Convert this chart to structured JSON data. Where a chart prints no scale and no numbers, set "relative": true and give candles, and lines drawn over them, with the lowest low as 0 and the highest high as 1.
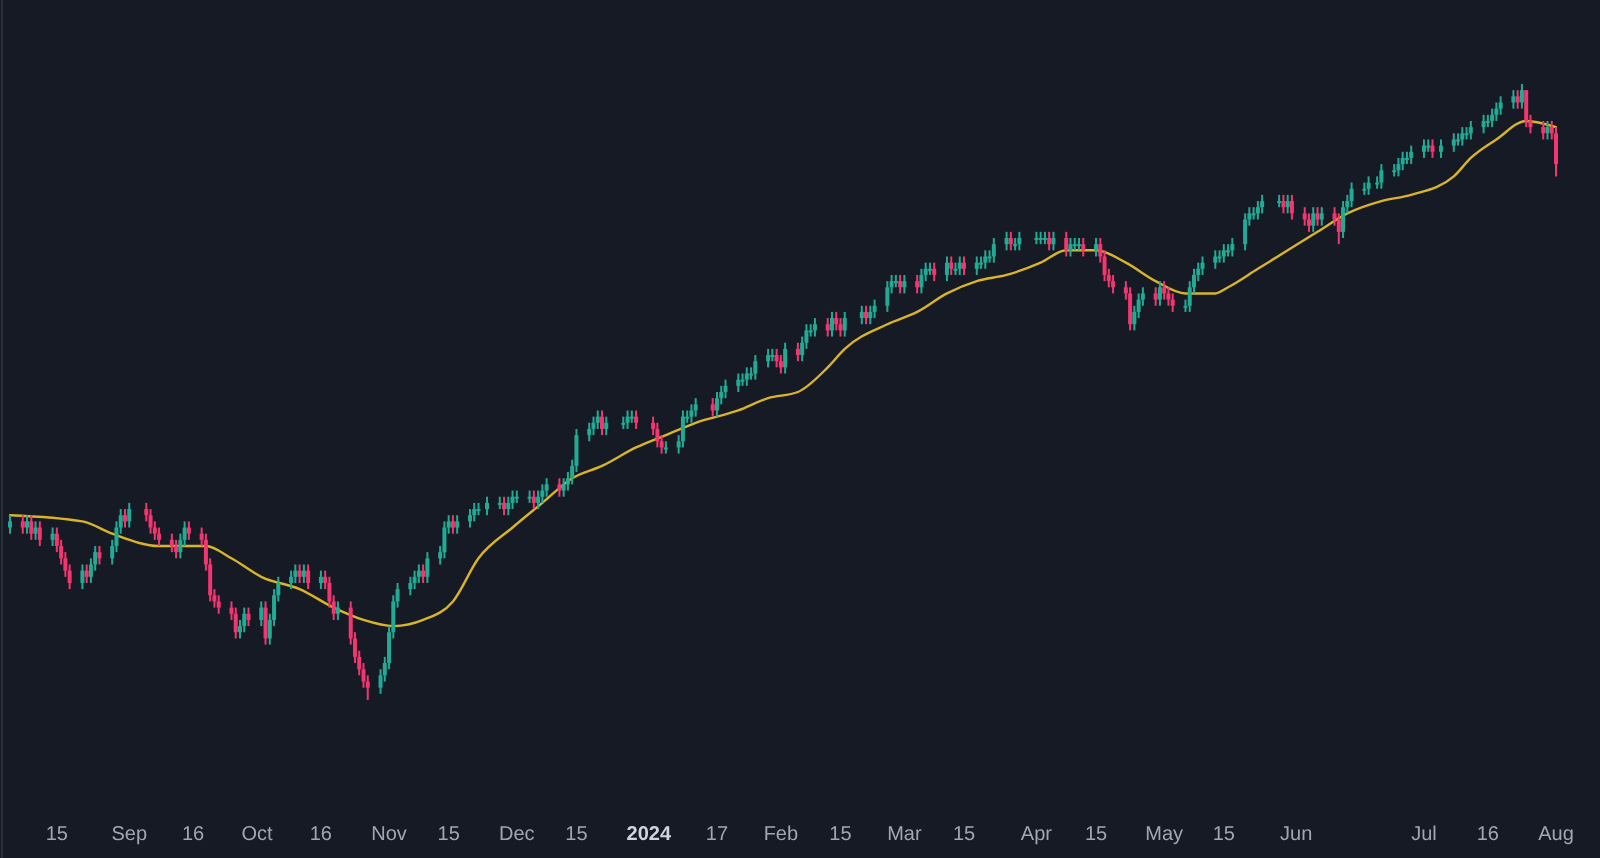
{
  "chart_data": {
    "type": "candlestick",
    "relative": true,
    "xlim": [
      "2023-08-04",
      "2024-08-01"
    ],
    "x": [
      "2023-08-04",
      "2023-08-07",
      "2023-08-08",
      "2023-08-09",
      "2023-08-10",
      "2023-08-11",
      "2023-08-14",
      "2023-08-15",
      "2023-08-16",
      "2023-08-17",
      "2023-08-18",
      "2023-08-21",
      "2023-08-22",
      "2023-08-23",
      "2023-08-24",
      "2023-08-25",
      "2023-08-28",
      "2023-08-29",
      "2023-08-30",
      "2023-08-31",
      "2023-09-01",
      "2023-09-05",
      "2023-09-06",
      "2023-09-07",
      "2023-09-08",
      "2023-09-11",
      "2023-09-12",
      "2023-09-13",
      "2023-09-14",
      "2023-09-15",
      "2023-09-18",
      "2023-09-19",
      "2023-09-20",
      "2023-09-21",
      "2023-09-22",
      "2023-09-25",
      "2023-09-26",
      "2023-09-27",
      "2023-09-28",
      "2023-09-29",
      "2023-10-02",
      "2023-10-03",
      "2023-10-04",
      "2023-10-05",
      "2023-10-06",
      "2023-10-09",
      "2023-10-10",
      "2023-10-11",
      "2023-10-12",
      "2023-10-13",
      "2023-10-16",
      "2023-10-17",
      "2023-10-18",
      "2023-10-19",
      "2023-10-20",
      "2023-10-23",
      "2023-10-24",
      "2023-10-25",
      "2023-10-26",
      "2023-10-27",
      "2023-10-30",
      "2023-10-31",
      "2023-11-01",
      "2023-11-02",
      "2023-11-03",
      "2023-11-06",
      "2023-11-07",
      "2023-11-08",
      "2023-11-09",
      "2023-11-10",
      "2023-11-13",
      "2023-11-14",
      "2023-11-15",
      "2023-11-16",
      "2023-11-17",
      "2023-11-20",
      "2023-11-21",
      "2023-11-22",
      "2023-11-24",
      "2023-11-27",
      "2023-11-28",
      "2023-11-29",
      "2023-11-30",
      "2023-12-01",
      "2023-12-04",
      "2023-12-05",
      "2023-12-06",
      "2023-12-07",
      "2023-12-08",
      "2023-12-11",
      "2023-12-12",
      "2023-12-13",
      "2023-12-14",
      "2023-12-15",
      "2023-12-18",
      "2023-12-19",
      "2023-12-20",
      "2023-12-21",
      "2023-12-22",
      "2023-12-26",
      "2023-12-27",
      "2023-12-28",
      "2023-12-29",
      "2024-01-02",
      "2024-01-03",
      "2024-01-04",
      "2024-01-05",
      "2024-01-08",
      "2024-01-09",
      "2024-01-10",
      "2024-01-11",
      "2024-01-12",
      "2024-01-16",
      "2024-01-17",
      "2024-01-18",
      "2024-01-19",
      "2024-01-22",
      "2024-01-23",
      "2024-01-24",
      "2024-01-25",
      "2024-01-26",
      "2024-01-29",
      "2024-01-30",
      "2024-01-31",
      "2024-02-01",
      "2024-02-02",
      "2024-02-05",
      "2024-02-06",
      "2024-02-07",
      "2024-02-08",
      "2024-02-09",
      "2024-02-12",
      "2024-02-13",
      "2024-02-14",
      "2024-02-15",
      "2024-02-16",
      "2024-02-20",
      "2024-02-21",
      "2024-02-22",
      "2024-02-23",
      "2024-02-26",
      "2024-02-27",
      "2024-02-28",
      "2024-02-29",
      "2024-03-01",
      "2024-03-04",
      "2024-03-05",
      "2024-03-06",
      "2024-03-07",
      "2024-03-08",
      "2024-03-11",
      "2024-03-12",
      "2024-03-13",
      "2024-03-14",
      "2024-03-15",
      "2024-03-18",
      "2024-03-19",
      "2024-03-20",
      "2024-03-21",
      "2024-03-22",
      "2024-03-25",
      "2024-03-26",
      "2024-03-27",
      "2024-03-28",
      "2024-04-01",
      "2024-04-02",
      "2024-04-03",
      "2024-04-04",
      "2024-04-05",
      "2024-04-08",
      "2024-04-09",
      "2024-04-10",
      "2024-04-11",
      "2024-04-12",
      "2024-04-15",
      "2024-04-16",
      "2024-04-17",
      "2024-04-18",
      "2024-04-19",
      "2024-04-22",
      "2024-04-23",
      "2024-04-24",
      "2024-04-25",
      "2024-04-26",
      "2024-04-29",
      "2024-04-30",
      "2024-05-01",
      "2024-05-02",
      "2024-05-03",
      "2024-05-06",
      "2024-05-07",
      "2024-05-08",
      "2024-05-09",
      "2024-05-10",
      "2024-05-13",
      "2024-05-14",
      "2024-05-15",
      "2024-05-16",
      "2024-05-17",
      "2024-05-20",
      "2024-05-21",
      "2024-05-22",
      "2024-05-23",
      "2024-05-24",
      "2024-05-28",
      "2024-05-29",
      "2024-05-30",
      "2024-05-31",
      "2024-06-03",
      "2024-06-04",
      "2024-06-05",
      "2024-06-06",
      "2024-06-07",
      "2024-06-10",
      "2024-06-11",
      "2024-06-12",
      "2024-06-13",
      "2024-06-14",
      "2024-06-17",
      "2024-06-18",
      "2024-06-20",
      "2024-06-21",
      "2024-06-24",
      "2024-06-25",
      "2024-06-26",
      "2024-06-27",
      "2024-06-28",
      "2024-07-01",
      "2024-07-02",
      "2024-07-03",
      "2024-07-05",
      "2024-07-08",
      "2024-07-09",
      "2024-07-10",
      "2024-07-11",
      "2024-07-12",
      "2024-07-15",
      "2024-07-16",
      "2024-07-17",
      "2024-07-18",
      "2024-07-19",
      "2024-07-22",
      "2024-07-23",
      "2024-07-24",
      "2024-07-25",
      "2024-07-26",
      "2024-07-29",
      "2024-07-30",
      "2024-07-31",
      "2024-08-01"
    ],
    "ohlc": [
      [
        0.28,
        0.3,
        0.27,
        0.29
      ],
      [
        0.29,
        0.3,
        0.27,
        0.28
      ],
      [
        0.28,
        0.3,
        0.27,
        0.29
      ],
      [
        0.29,
        0.3,
        0.26,
        0.27
      ],
      [
        0.27,
        0.29,
        0.26,
        0.28
      ],
      [
        0.28,
        0.29,
        0.25,
        0.26
      ],
      [
        0.26,
        0.28,
        0.25,
        0.27
      ],
      [
        0.27,
        0.28,
        0.24,
        0.25
      ],
      [
        0.25,
        0.26,
        0.22,
        0.23
      ],
      [
        0.23,
        0.24,
        0.2,
        0.21
      ],
      [
        0.21,
        0.22,
        0.18,
        0.19
      ],
      [
        0.19,
        0.22,
        0.18,
        0.21
      ],
      [
        0.21,
        0.22,
        0.19,
        0.2
      ],
      [
        0.2,
        0.23,
        0.19,
        0.22
      ],
      [
        0.22,
        0.25,
        0.21,
        0.24
      ],
      [
        0.24,
        0.25,
        0.22,
        0.23
      ],
      [
        0.23,
        0.26,
        0.22,
        0.25
      ],
      [
        0.25,
        0.29,
        0.24,
        0.28
      ],
      [
        0.28,
        0.31,
        0.27,
        0.3
      ],
      [
        0.3,
        0.31,
        0.28,
        0.29
      ],
      [
        0.29,
        0.32,
        0.28,
        0.31
      ],
      [
        0.31,
        0.32,
        0.29,
        0.3
      ],
      [
        0.3,
        0.31,
        0.27,
        0.28
      ],
      [
        0.28,
        0.29,
        0.26,
        0.27
      ],
      [
        0.27,
        0.28,
        0.25,
        0.26
      ],
      [
        0.26,
        0.27,
        0.24,
        0.25
      ],
      [
        0.25,
        0.26,
        0.23,
        0.24
      ],
      [
        0.24,
        0.27,
        0.23,
        0.26
      ],
      [
        0.26,
        0.29,
        0.25,
        0.28
      ],
      [
        0.28,
        0.29,
        0.26,
        0.27
      ],
      [
        0.27,
        0.28,
        0.25,
        0.26
      ],
      [
        0.26,
        0.27,
        0.21,
        0.22
      ],
      [
        0.22,
        0.23,
        0.16,
        0.17
      ],
      [
        0.17,
        0.18,
        0.15,
        0.16
      ],
      [
        0.16,
        0.17,
        0.14,
        0.15
      ],
      [
        0.15,
        0.16,
        0.13,
        0.14
      ],
      [
        0.14,
        0.15,
        0.1,
        0.11
      ],
      [
        0.11,
        0.13,
        0.1,
        0.12
      ],
      [
        0.12,
        0.15,
        0.11,
        0.14
      ],
      [
        0.14,
        0.15,
        0.12,
        0.13
      ],
      [
        0.13,
        0.16,
        0.12,
        0.15
      ],
      [
        0.15,
        0.16,
        0.09,
        0.1
      ],
      [
        0.1,
        0.14,
        0.09,
        0.13
      ],
      [
        0.13,
        0.18,
        0.12,
        0.17
      ],
      [
        0.17,
        0.2,
        0.16,
        0.19
      ],
      [
        0.19,
        0.21,
        0.18,
        0.2
      ],
      [
        0.2,
        0.22,
        0.19,
        0.21
      ],
      [
        0.21,
        0.22,
        0.19,
        0.2
      ],
      [
        0.2,
        0.22,
        0.19,
        0.21
      ],
      [
        0.21,
        0.22,
        0.18,
        0.19
      ],
      [
        0.19,
        0.21,
        0.18,
        0.2
      ],
      [
        0.2,
        0.21,
        0.18,
        0.19
      ],
      [
        0.19,
        0.2,
        0.15,
        0.16
      ],
      [
        0.16,
        0.17,
        0.13,
        0.14
      ],
      [
        0.14,
        0.16,
        0.13,
        0.15
      ],
      [
        0.15,
        0.16,
        0.09,
        0.1
      ],
      [
        0.1,
        0.11,
        0.06,
        0.07
      ],
      [
        0.07,
        0.08,
        0.04,
        0.05
      ],
      [
        0.05,
        0.06,
        0.02,
        0.03
      ],
      [
        0.03,
        0.04,
        0.0,
        0.02
      ],
      [
        0.02,
        0.05,
        0.01,
        0.04
      ],
      [
        0.04,
        0.07,
        0.03,
        0.06
      ],
      [
        0.06,
        0.12,
        0.05,
        0.11
      ],
      [
        0.11,
        0.17,
        0.1,
        0.16
      ],
      [
        0.16,
        0.19,
        0.15,
        0.18
      ],
      [
        0.18,
        0.2,
        0.17,
        0.19
      ],
      [
        0.19,
        0.21,
        0.18,
        0.2
      ],
      [
        0.2,
        0.22,
        0.19,
        0.21
      ],
      [
        0.21,
        0.22,
        0.19,
        0.2
      ],
      [
        0.2,
        0.24,
        0.19,
        0.23
      ],
      [
        0.23,
        0.25,
        0.22,
        0.24
      ],
      [
        0.24,
        0.29,
        0.23,
        0.28
      ],
      [
        0.28,
        0.3,
        0.27,
        0.29
      ],
      [
        0.29,
        0.3,
        0.27,
        0.28
      ],
      [
        0.28,
        0.3,
        0.27,
        0.29
      ],
      [
        0.29,
        0.31,
        0.28,
        0.3
      ],
      [
        0.3,
        0.32,
        0.29,
        0.31
      ],
      [
        0.31,
        0.32,
        0.3,
        0.31
      ],
      [
        0.31,
        0.33,
        0.3,
        0.32
      ],
      [
        0.32,
        0.33,
        0.31,
        0.32
      ],
      [
        0.32,
        0.33,
        0.3,
        0.31
      ],
      [
        0.31,
        0.33,
        0.3,
        0.32
      ],
      [
        0.32,
        0.34,
        0.31,
        0.33
      ],
      [
        0.33,
        0.34,
        0.32,
        0.33
      ],
      [
        0.33,
        0.34,
        0.32,
        0.33
      ],
      [
        0.33,
        0.34,
        0.31,
        0.32
      ],
      [
        0.32,
        0.34,
        0.31,
        0.33
      ],
      [
        0.33,
        0.35,
        0.32,
        0.34
      ],
      [
        0.34,
        0.36,
        0.33,
        0.35
      ],
      [
        0.35,
        0.36,
        0.33,
        0.34
      ],
      [
        0.34,
        0.36,
        0.33,
        0.35
      ],
      [
        0.35,
        0.37,
        0.34,
        0.36
      ],
      [
        0.36,
        0.39,
        0.35,
        0.38
      ],
      [
        0.38,
        0.44,
        0.37,
        0.43
      ],
      [
        0.43,
        0.45,
        0.42,
        0.44
      ],
      [
        0.44,
        0.46,
        0.43,
        0.45
      ],
      [
        0.45,
        0.47,
        0.44,
        0.46
      ],
      [
        0.46,
        0.47,
        0.43,
        0.44
      ],
      [
        0.44,
        0.46,
        0.43,
        0.45
      ],
      [
        0.45,
        0.46,
        0.44,
        0.45
      ],
      [
        0.45,
        0.47,
        0.44,
        0.46
      ],
      [
        0.46,
        0.47,
        0.45,
        0.46
      ],
      [
        0.46,
        0.47,
        0.44,
        0.45
      ],
      [
        0.45,
        0.46,
        0.43,
        0.44
      ],
      [
        0.44,
        0.45,
        0.41,
        0.42
      ],
      [
        0.42,
        0.43,
        0.4,
        0.41
      ],
      [
        0.41,
        0.42,
        0.4,
        0.41
      ],
      [
        0.41,
        0.43,
        0.4,
        0.42
      ],
      [
        0.42,
        0.47,
        0.41,
        0.46
      ],
      [
        0.46,
        0.47,
        0.45,
        0.46
      ],
      [
        0.46,
        0.48,
        0.45,
        0.47
      ],
      [
        0.47,
        0.49,
        0.46,
        0.48
      ],
      [
        0.48,
        0.49,
        0.46,
        0.47
      ],
      [
        0.47,
        0.5,
        0.46,
        0.49
      ],
      [
        0.49,
        0.51,
        0.48,
        0.5
      ],
      [
        0.5,
        0.52,
        0.49,
        0.51
      ],
      [
        0.51,
        0.53,
        0.5,
        0.52
      ],
      [
        0.52,
        0.53,
        0.51,
        0.52
      ],
      [
        0.52,
        0.54,
        0.51,
        0.53
      ],
      [
        0.53,
        0.54,
        0.52,
        0.53
      ],
      [
        0.53,
        0.56,
        0.52,
        0.55
      ],
      [
        0.55,
        0.57,
        0.54,
        0.56
      ],
      [
        0.56,
        0.57,
        0.55,
        0.56
      ],
      [
        0.56,
        0.57,
        0.54,
        0.55
      ],
      [
        0.55,
        0.56,
        0.53,
        0.54
      ],
      [
        0.54,
        0.58,
        0.53,
        0.57
      ],
      [
        0.57,
        0.58,
        0.55,
        0.56
      ],
      [
        0.56,
        0.59,
        0.55,
        0.58
      ],
      [
        0.58,
        0.61,
        0.57,
        0.6
      ],
      [
        0.6,
        0.61,
        0.59,
        0.6
      ],
      [
        0.6,
        0.62,
        0.59,
        0.61
      ],
      [
        0.61,
        0.62,
        0.59,
        0.6
      ],
      [
        0.6,
        0.63,
        0.59,
        0.62
      ],
      [
        0.62,
        0.63,
        0.6,
        0.61
      ],
      [
        0.61,
        0.62,
        0.59,
        0.6
      ],
      [
        0.6,
        0.63,
        0.59,
        0.62
      ],
      [
        0.62,
        0.64,
        0.61,
        0.63
      ],
      [
        0.63,
        0.64,
        0.61,
        0.62
      ],
      [
        0.62,
        0.64,
        0.61,
        0.63
      ],
      [
        0.63,
        0.65,
        0.62,
        0.64
      ],
      [
        0.64,
        0.68,
        0.63,
        0.67
      ],
      [
        0.67,
        0.69,
        0.66,
        0.68
      ],
      [
        0.68,
        0.69,
        0.67,
        0.68
      ],
      [
        0.68,
        0.69,
        0.66,
        0.67
      ],
      [
        0.67,
        0.69,
        0.66,
        0.68
      ],
      [
        0.68,
        0.69,
        0.66,
        0.67
      ],
      [
        0.67,
        0.7,
        0.66,
        0.69
      ],
      [
        0.69,
        0.71,
        0.68,
        0.7
      ],
      [
        0.7,
        0.71,
        0.69,
        0.7
      ],
      [
        0.7,
        0.71,
        0.68,
        0.69
      ],
      [
        0.69,
        0.72,
        0.68,
        0.71
      ],
      [
        0.71,
        0.72,
        0.69,
        0.7
      ],
      [
        0.7,
        0.71,
        0.69,
        0.7
      ],
      [
        0.7,
        0.72,
        0.69,
        0.71
      ],
      [
        0.71,
        0.72,
        0.69,
        0.7
      ],
      [
        0.7,
        0.72,
        0.69,
        0.71
      ],
      [
        0.71,
        0.72,
        0.7,
        0.71
      ],
      [
        0.71,
        0.73,
        0.7,
        0.72
      ],
      [
        0.72,
        0.73,
        0.71,
        0.72
      ],
      [
        0.72,
        0.75,
        0.71,
        0.74
      ],
      [
        0.74,
        0.76,
        0.73,
        0.75
      ],
      [
        0.75,
        0.76,
        0.73,
        0.74
      ],
      [
        0.74,
        0.75,
        0.73,
        0.74
      ],
      [
        0.74,
        0.76,
        0.73,
        0.75
      ],
      [
        0.75,
        0.76,
        0.74,
        0.75
      ],
      [
        0.75,
        0.76,
        0.74,
        0.75
      ],
      [
        0.75,
        0.76,
        0.74,
        0.75
      ],
      [
        0.75,
        0.76,
        0.73,
        0.74
      ],
      [
        0.74,
        0.76,
        0.73,
        0.75
      ],
      [
        0.75,
        0.76,
        0.72,
        0.73
      ],
      [
        0.73,
        0.75,
        0.72,
        0.74
      ],
      [
        0.74,
        0.75,
        0.73,
        0.74
      ],
      [
        0.74,
        0.75,
        0.73,
        0.74
      ],
      [
        0.74,
        0.75,
        0.72,
        0.73
      ],
      [
        0.73,
        0.75,
        0.72,
        0.74
      ],
      [
        0.74,
        0.75,
        0.71,
        0.72
      ],
      [
        0.72,
        0.73,
        0.68,
        0.69
      ],
      [
        0.69,
        0.7,
        0.67,
        0.68
      ],
      [
        0.68,
        0.69,
        0.66,
        0.67
      ],
      [
        0.67,
        0.68,
        0.65,
        0.66
      ],
      [
        0.66,
        0.67,
        0.6,
        0.61
      ],
      [
        0.61,
        0.64,
        0.6,
        0.63
      ],
      [
        0.63,
        0.66,
        0.62,
        0.65
      ],
      [
        0.65,
        0.67,
        0.64,
        0.66
      ],
      [
        0.66,
        0.67,
        0.64,
        0.65
      ],
      [
        0.65,
        0.68,
        0.64,
        0.67
      ],
      [
        0.67,
        0.68,
        0.65,
        0.66
      ],
      [
        0.66,
        0.67,
        0.64,
        0.65
      ],
      [
        0.65,
        0.66,
        0.63,
        0.64
      ],
      [
        0.64,
        0.65,
        0.63,
        0.64
      ],
      [
        0.64,
        0.68,
        0.63,
        0.67
      ],
      [
        0.67,
        0.7,
        0.66,
        0.69
      ],
      [
        0.69,
        0.71,
        0.68,
        0.7
      ],
      [
        0.7,
        0.72,
        0.69,
        0.71
      ],
      [
        0.71,
        0.73,
        0.7,
        0.72
      ],
      [
        0.72,
        0.73,
        0.71,
        0.72
      ],
      [
        0.72,
        0.74,
        0.71,
        0.73
      ],
      [
        0.73,
        0.74,
        0.72,
        0.73
      ],
      [
        0.73,
        0.75,
        0.72,
        0.74
      ],
      [
        0.74,
        0.79,
        0.73,
        0.78
      ],
      [
        0.78,
        0.8,
        0.77,
        0.79
      ],
      [
        0.79,
        0.8,
        0.78,
        0.79
      ],
      [
        0.79,
        0.81,
        0.78,
        0.8
      ],
      [
        0.8,
        0.82,
        0.79,
        0.81
      ],
      [
        0.81,
        0.82,
        0.8,
        0.81
      ],
      [
        0.81,
        0.82,
        0.79,
        0.8
      ],
      [
        0.8,
        0.82,
        0.79,
        0.81
      ],
      [
        0.81,
        0.82,
        0.78,
        0.79
      ],
      [
        0.79,
        0.8,
        0.77,
        0.78
      ],
      [
        0.78,
        0.79,
        0.76,
        0.77
      ],
      [
        0.77,
        0.8,
        0.76,
        0.79
      ],
      [
        0.79,
        0.8,
        0.77,
        0.78
      ],
      [
        0.78,
        0.8,
        0.77,
        0.79
      ],
      [
        0.79,
        0.8,
        0.77,
        0.78
      ],
      [
        0.78,
        0.79,
        0.74,
        0.76
      ],
      [
        0.76,
        0.81,
        0.75,
        0.8
      ],
      [
        0.8,
        0.82,
        0.79,
        0.81
      ],
      [
        0.81,
        0.84,
        0.8,
        0.83
      ],
      [
        0.83,
        0.84,
        0.82,
        0.83
      ],
      [
        0.83,
        0.85,
        0.82,
        0.84
      ],
      [
        0.84,
        0.85,
        0.83,
        0.84
      ],
      [
        0.84,
        0.87,
        0.83,
        0.86
      ],
      [
        0.86,
        0.87,
        0.85,
        0.86
      ],
      [
        0.86,
        0.88,
        0.85,
        0.87
      ],
      [
        0.87,
        0.89,
        0.86,
        0.88
      ],
      [
        0.88,
        0.89,
        0.87,
        0.88
      ],
      [
        0.88,
        0.9,
        0.87,
        0.89
      ],
      [
        0.89,
        0.91,
        0.88,
        0.9
      ],
      [
        0.9,
        0.91,
        0.89,
        0.9
      ],
      [
        0.9,
        0.91,
        0.88,
        0.89
      ],
      [
        0.89,
        0.91,
        0.88,
        0.9
      ],
      [
        0.9,
        0.92,
        0.89,
        0.91
      ],
      [
        0.91,
        0.92,
        0.9,
        0.91
      ],
      [
        0.91,
        0.93,
        0.9,
        0.92
      ],
      [
        0.92,
        0.93,
        0.91,
        0.92
      ],
      [
        0.92,
        0.94,
        0.91,
        0.93
      ],
      [
        0.93,
        0.95,
        0.92,
        0.94
      ],
      [
        0.94,
        0.95,
        0.93,
        0.94
      ],
      [
        0.94,
        0.96,
        0.93,
        0.95
      ],
      [
        0.95,
        0.97,
        0.94,
        0.96
      ],
      [
        0.96,
        0.98,
        0.95,
        0.97
      ],
      [
        0.97,
        0.99,
        0.96,
        0.98
      ],
      [
        0.98,
        0.99,
        0.96,
        0.97
      ],
      [
        0.97,
        1.0,
        0.96,
        0.99
      ],
      [
        0.99,
        0.99,
        0.93,
        0.94
      ],
      [
        0.94,
        0.95,
        0.92,
        0.93
      ],
      [
        0.93,
        0.94,
        0.91,
        0.92
      ],
      [
        0.92,
        0.94,
        0.91,
        0.93
      ],
      [
        0.93,
        0.94,
        0.91,
        0.92
      ],
      [
        0.92,
        0.93,
        0.85,
        0.87
      ]
    ],
    "series": [
      {
        "type": "line",
        "color": "#d9b42a",
        "x": [
          "2023-08-04",
          "2023-08-21",
          "2023-08-28",
          "2023-09-08",
          "2023-09-19",
          "2023-09-25",
          "2023-10-02",
          "2023-10-11",
          "2023-10-19",
          "2023-10-26",
          "2023-11-02",
          "2023-11-09",
          "2023-11-16",
          "2023-11-22",
          "2023-11-30",
          "2023-12-07",
          "2023-12-14",
          "2023-12-21",
          "2023-12-29",
          "2024-01-05",
          "2024-01-12",
          "2024-01-22",
          "2024-01-29",
          "2024-02-05",
          "2024-02-12",
          "2024-02-16",
          "2024-02-26",
          "2024-03-04",
          "2024-03-11",
          "2024-03-18",
          "2024-03-25",
          "2024-04-02",
          "2024-04-08",
          "2024-04-15",
          "2024-04-22",
          "2024-04-29",
          "2024-05-06",
          "2024-05-13",
          "2024-05-16",
          "2024-05-23",
          "2024-05-30",
          "2024-06-06",
          "2024-06-13",
          "2024-06-21",
          "2024-06-28",
          "2024-07-08",
          "2024-07-12",
          "2024-07-18",
          "2024-07-25",
          "2024-08-01"
        ],
        "values": [
          0.3,
          0.29,
          0.27,
          0.25,
          0.25,
          0.23,
          0.2,
          0.18,
          0.15,
          0.13,
          0.12,
          0.13,
          0.16,
          0.23,
          0.28,
          0.32,
          0.36,
          0.38,
          0.41,
          0.43,
          0.45,
          0.47,
          0.49,
          0.5,
          0.54,
          0.57,
          0.61,
          0.63,
          0.66,
          0.68,
          0.69,
          0.71,
          0.73,
          0.73,
          0.71,
          0.68,
          0.66,
          0.66,
          0.67,
          0.7,
          0.73,
          0.76,
          0.79,
          0.81,
          0.82,
          0.85,
          0.88,
          0.91,
          0.94,
          0.93
        ]
      }
    ],
    "xticks": [
      {
        "value": "2023-08-15",
        "label": "15"
      },
      {
        "value": "2023-09-01",
        "label": "Sep"
      },
      {
        "value": "2023-09-16",
        "label": "16"
      },
      {
        "value": "2023-10-01",
        "label": "Oct"
      },
      {
        "value": "2023-10-16",
        "label": "16"
      },
      {
        "value": "2023-11-01",
        "label": "Nov"
      },
      {
        "value": "2023-11-15",
        "label": "15"
      },
      {
        "value": "2023-12-01",
        "label": "Dec"
      },
      {
        "value": "2023-12-15",
        "label": "15"
      },
      {
        "value": "2024-01-01",
        "label": "2024"
      },
      {
        "value": "2024-01-17",
        "label": "17"
      },
      {
        "value": "2024-02-01",
        "label": "Feb"
      },
      {
        "value": "2024-02-15",
        "label": "15"
      },
      {
        "value": "2024-03-01",
        "label": "Mar"
      },
      {
        "value": "2024-03-15",
        "label": "15"
      },
      {
        "value": "2024-04-01",
        "label": "Apr"
      },
      {
        "value": "2024-04-15",
        "label": "15"
      },
      {
        "value": "2024-05-01",
        "label": "May"
      },
      {
        "value": "2024-05-15",
        "label": "15"
      },
      {
        "value": "2024-06-01",
        "label": "Jun"
      },
      {
        "value": "2024-07-01",
        "label": "Jul"
      },
      {
        "value": "2024-07-16",
        "label": "16"
      },
      {
        "value": "2024-08-01",
        "label": "Aug"
      }
    ]
  }
}
